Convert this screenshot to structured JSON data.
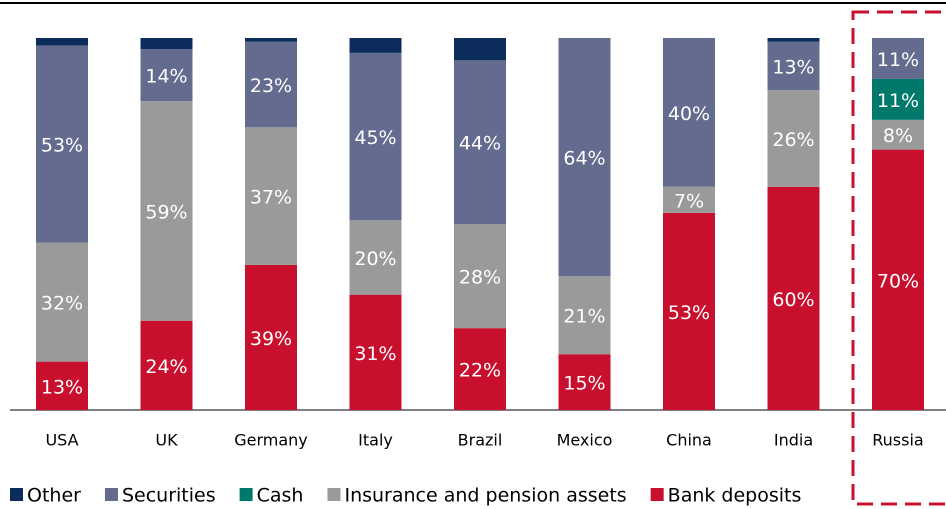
{
  "chart_data": {
    "type": "bar",
    "stacked": true,
    "categories": [
      "USA",
      "UK",
      "Germany",
      "Italy",
      "Brazil",
      "Mexico",
      "China",
      "India",
      "Russia"
    ],
    "ylim": [
      0,
      100
    ],
    "series": [
      {
        "name": "Other",
        "color": "#0c2c5c",
        "values": [
          2,
          3,
          1,
          4,
          6,
          0,
          0,
          1,
          0
        ]
      },
      {
        "name": "Securities",
        "color": "#636b8f",
        "values": [
          53,
          14,
          23,
          45,
          44,
          64,
          40,
          13,
          11
        ],
        "value_labels": [
          "53%",
          "14%",
          "23%",
          "45%",
          "44%",
          "64%",
          "40%",
          "13%",
          "11%"
        ]
      },
      {
        "name": "Cash",
        "color": "#00796b",
        "values": [
          0,
          0,
          0,
          0,
          0,
          0,
          0,
          0,
          11
        ],
        "value_labels": [
          null,
          null,
          null,
          null,
          null,
          null,
          null,
          null,
          "11%"
        ]
      },
      {
        "name": "Insurance and pension assets",
        "color": "#9a9a9a",
        "values": [
          32,
          59,
          37,
          20,
          28,
          21,
          7,
          26,
          8
        ],
        "value_labels": [
          "32%",
          "59%",
          "37%",
          "20%",
          "28%",
          "21%",
          "7%",
          "26%",
          "8%"
        ]
      },
      {
        "name": "Bank deposits",
        "color": "#c8102e",
        "values": [
          13,
          24,
          39,
          31,
          22,
          15,
          53,
          60,
          70
        ],
        "value_labels": [
          "13%",
          "24%",
          "39%",
          "31%",
          "22%",
          "15%",
          "53%",
          "60%",
          "70%"
        ]
      }
    ]
  }
}
